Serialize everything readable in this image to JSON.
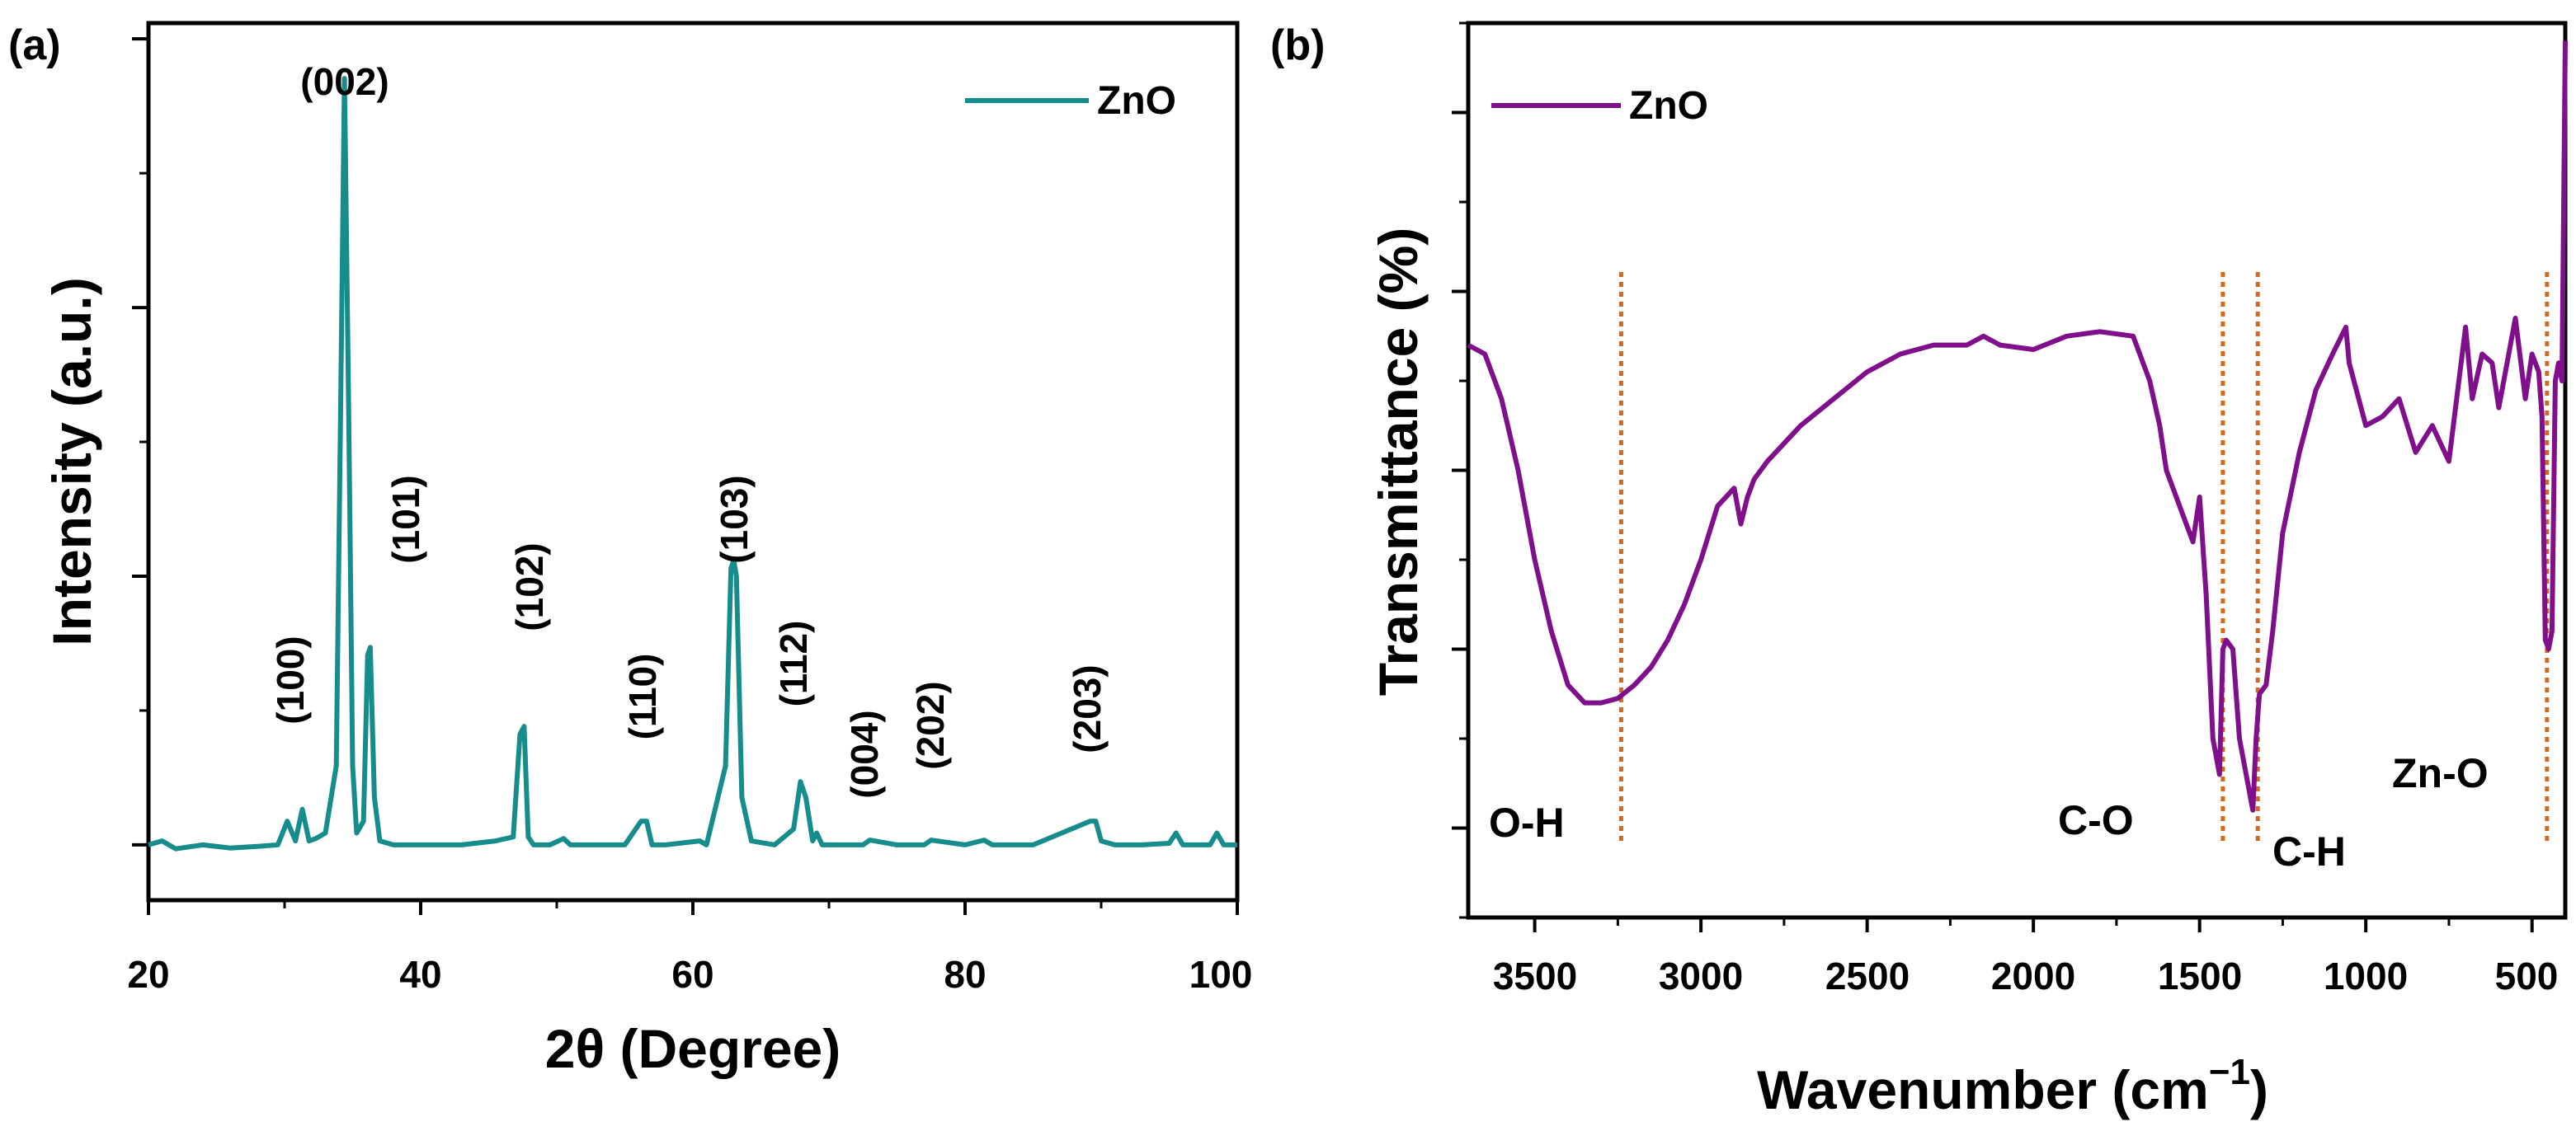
{
  "chart_data": [
    {
      "panel": "(a)",
      "type": "line",
      "title": "",
      "xlabel": "2θ (Degree)",
      "ylabel": "Intensity (a.u.)",
      "xlim": [
        20,
        100
      ],
      "ylim": [
        -5,
        106
      ],
      "xticks": [
        20,
        40,
        60,
        80,
        100
      ],
      "xtick_labels": [
        "20",
        "40",
        "60",
        "80",
        "100"
      ],
      "y_tick_labels_shown": false,
      "legend": {
        "label": "ZnO",
        "position": "top-right"
      },
      "color": "#168c8c",
      "series": [
        {
          "name": "ZnO",
          "x": [
            20,
            21,
            22,
            24,
            26,
            28,
            29.5,
            30.2,
            30.8,
            31.3,
            31.8,
            32.3,
            33,
            33.8,
            34.1,
            34.4,
            34.7,
            35.0,
            35.3,
            35.8,
            36.1,
            36.3,
            36.6,
            37.0,
            38,
            40,
            43,
            45.5,
            46.8,
            47.3,
            47.6,
            47.9,
            48.3,
            49.5,
            50.5,
            51,
            53,
            55,
            56.2,
            56.6,
            57.0,
            58,
            60.5,
            61,
            62.4,
            62.8,
            63.0,
            63.2,
            63.6,
            64.3,
            66,
            67.4,
            67.9,
            68.3,
            68.8,
            69.1,
            69.5,
            70.5,
            72.5,
            73,
            75,
            77,
            77.5,
            80,
            81.4,
            82,
            85,
            89.2,
            89.6,
            90,
            91,
            93,
            95,
            95.5,
            96,
            98,
            98.5,
            99,
            100
          ],
          "y": [
            2,
            2.5,
            1.5,
            2,
            1.6,
            1.8,
            2,
            5,
            2.5,
            6.5,
            2.5,
            2.8,
            3.5,
            12,
            55,
            99,
            58,
            12,
            3.5,
            5,
            26,
            27,
            8,
            2.5,
            2,
            2,
            2,
            2.5,
            3,
            16,
            17,
            3,
            2,
            2,
            2.8,
            2,
            2,
            2,
            5,
            5,
            2,
            2,
            2.5,
            2,
            12,
            37,
            38,
            36,
            8,
            2.5,
            2,
            4,
            10,
            8,
            2.5,
            3.5,
            2,
            2,
            2,
            2.6,
            2,
            2,
            2.6,
            2,
            2.6,
            2,
            2,
            5,
            5,
            2.5,
            2,
            2,
            2.2,
            3.5,
            2,
            2,
            3.5,
            2,
            2
          ]
        }
      ],
      "annotations": [
        {
          "text": "(002)",
          "orientation": "horizontal"
        },
        {
          "text": "(100)",
          "orientation": "vertical"
        },
        {
          "text": "(101)",
          "orientation": "vertical"
        },
        {
          "text": "(102)",
          "orientation": "vertical"
        },
        {
          "text": "(110)",
          "orientation": "vertical"
        },
        {
          "text": "(103)",
          "orientation": "vertical"
        },
        {
          "text": "(112)",
          "orientation": "vertical"
        },
        {
          "text": "(004)",
          "orientation": "vertical"
        },
        {
          "text": "(202)",
          "orientation": "vertical"
        },
        {
          "text": "(203)",
          "orientation": "vertical"
        }
      ]
    },
    {
      "panel": "(b)",
      "type": "line",
      "title": "",
      "xlabel_main": "Wavenumber (cm",
      "xlabel_exponent": "−1",
      "xlabel_close": ")",
      "ylabel": "Transmittance (%)",
      "xlim": [
        3700,
        400
      ],
      "ylim": [
        0,
        100
      ],
      "xticks": [
        3500,
        3000,
        2500,
        2000,
        1500,
        1000,
        500
      ],
      "xtick_labels": [
        "3500",
        "3000",
        "2500",
        "2000",
        "1500",
        "1000",
        "500"
      ],
      "y_tick_labels_shown": false,
      "legend": {
        "label": "ZnO",
        "position": "top-left"
      },
      "color": "#800f8c",
      "series": [
        {
          "name": "ZnO",
          "x": [
            3700,
            3650,
            3600,
            3550,
            3500,
            3450,
            3400,
            3350,
            3300,
            3250,
            3200,
            3150,
            3100,
            3050,
            3000,
            2950,
            2900,
            2880,
            2860,
            2840,
            2800,
            2700,
            2600,
            2500,
            2400,
            2300,
            2200,
            2150,
            2100,
            2000,
            1900,
            1800,
            1700,
            1650,
            1620,
            1600,
            1550,
            1520,
            1500,
            1480,
            1460,
            1440,
            1430,
            1420,
            1400,
            1380,
            1360,
            1340,
            1330,
            1320,
            1300,
            1280,
            1250,
            1200,
            1150,
            1100,
            1060,
            1050,
            1000,
            950,
            900,
            850,
            800,
            750,
            700,
            680,
            650,
            620,
            600,
            550,
            520,
            500,
            480,
            470,
            460,
            450,
            440,
            430,
            420,
            410,
            400
          ],
          "x_unit": "cm-1",
          "y": [
            64,
            63,
            58,
            50,
            40,
            32,
            26,
            24,
            24,
            24.5,
            26,
            28,
            31,
            35,
            40,
            46,
            48,
            44,
            47,
            49,
            51,
            55,
            58,
            61,
            63,
            64,
            64,
            65,
            64,
            63.5,
            65,
            65.5,
            65,
            60,
            55,
            50,
            45,
            42,
            47,
            36,
            20,
            16,
            30,
            31,
            30,
            20,
            16,
            12,
            20,
            25,
            26,
            32,
            43,
            52,
            59,
            63,
            66,
            62,
            55,
            56,
            58,
            52,
            55,
            51,
            66,
            58,
            63,
            62,
            57,
            67,
            58,
            63,
            61,
            56,
            31,
            30,
            32,
            60,
            62,
            60,
            98
          ]
        }
      ],
      "band_labels": [
        {
          "text": "O-H",
          "wavenumber": 3240
        },
        {
          "text": "C-O",
          "wavenumber": 1430
        },
        {
          "text": "C-H",
          "wavenumber": 1325
        },
        {
          "text": "Zn-O",
          "wavenumber": 455
        }
      ]
    }
  ]
}
